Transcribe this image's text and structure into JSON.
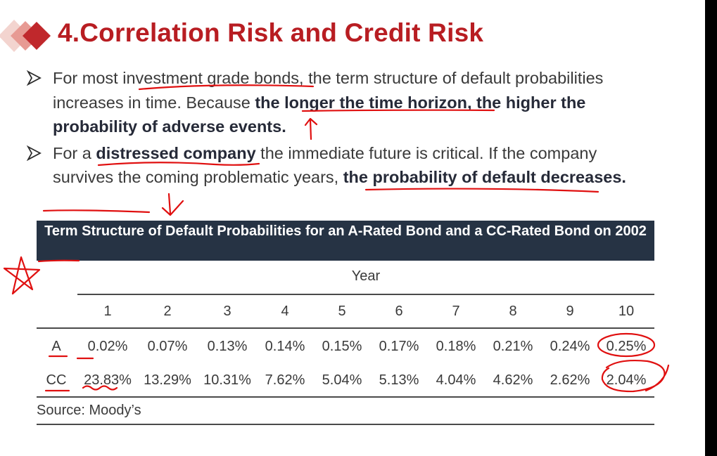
{
  "slide": {
    "title": "4.Correlation Risk and Credit Risk",
    "colors": {
      "title": "#b81d22",
      "table_header_bg": "#263344",
      "annotation_ink": "#e01010"
    }
  },
  "bullets": [
    {
      "icon": "arrowhead-bullet-icon",
      "segments": [
        {
          "text": "For most investment grade bonds, the term structure of default probabilities increases in time. Because ",
          "bold": false
        },
        {
          "text": "the longer the time horizon, the higher the probability of adverse events.",
          "bold": true
        }
      ]
    },
    {
      "icon": "arrowhead-bullet-icon",
      "segments": [
        {
          "text": "For a ",
          "bold": false
        },
        {
          "text": "distressed company",
          "bold": true
        },
        {
          "text": " the immediate future is critical. If the company survives the coming problematic years, ",
          "bold": false
        },
        {
          "text": "the probability of default decreases.",
          "bold": true
        }
      ]
    }
  ],
  "table": {
    "title": "Term Structure of Default Probabilities for an A-Rated Bond and a CC-Rated Bond on 2002",
    "year_label": "Year",
    "years": [
      "1",
      "2",
      "3",
      "4",
      "5",
      "6",
      "7",
      "8",
      "9",
      "10"
    ],
    "rows": [
      {
        "label": "A",
        "values": [
          "0.02%",
          "0.07%",
          "0.13%",
          "0.14%",
          "0.15%",
          "0.17%",
          "0.18%",
          "0.21%",
          "0.24%",
          "0.25%"
        ]
      },
      {
        "label": "CC",
        "values": [
          "23.83%",
          "13.29%",
          "10.31%",
          "7.62%",
          "5.04%",
          "5.13%",
          "4.04%",
          "4.62%",
          "2.62%",
          "2.04%"
        ]
      }
    ],
    "source": "Source: Moody’s"
  }
}
